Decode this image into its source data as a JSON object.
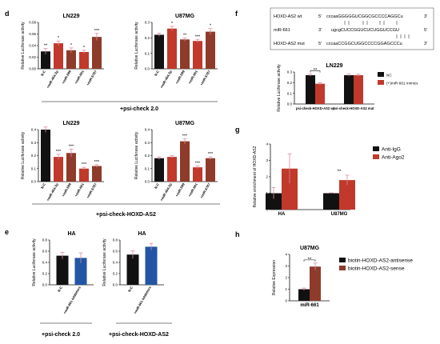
{
  "panels": {
    "d": "d",
    "e": "e",
    "f": "f",
    "g": "g",
    "h": "h"
  },
  "colors": {
    "black": "#111111",
    "red": "#c0392b",
    "brown": "#8e3b2b",
    "blue": "#2255a4",
    "pink": "#f2a2b8",
    "line": "#333333"
  },
  "groups": {
    "d_top": "+psi-check 2.0",
    "d_bottom": "+psi-check-HOXD-AS2",
    "e_left": "+psi-check 2.0",
    "e_right": "+psi-check-HOXD-AS2"
  },
  "sequences": {
    "rows": [
      {
        "name": "HOXD-AS2 wt",
        "p5": "5'",
        "seq": "cccaaGGGGGUCGGCGCCCCAGGCu",
        "p3": "3'"
      },
      {
        "name": "miR-661",
        "p5": "3'",
        "seq": "ugcgCUCCGGUCUCUGGUCCGU",
        "p3": "5'"
      },
      {
        "name": "HOXD-AS2 mut",
        "p5": "5'",
        "seq": "cccaaCCGGCUGGCCCCGGAGCCCu",
        "p3": "3'"
      }
    ]
  },
  "chart_data": [
    {
      "id": "d1",
      "type": "bar",
      "title": "LN229",
      "ylabel": "Relative Luciferase activity",
      "ylim": [
        0,
        0.08
      ],
      "ticks": [
        "0.00",
        "0.02",
        "0.04",
        "0.06",
        "0.08"
      ],
      "categories": [
        "N.C",
        "+miR-454-3p",
        "+miR-599",
        "+miR-661",
        "+miR-5787"
      ],
      "values": [
        0.03,
        0.044,
        0.032,
        0.029,
        0.055
      ],
      "errors": [
        0.005,
        0.004,
        0.004,
        0.003,
        0.006
      ],
      "colors": [
        "#111111",
        "#c0392b",
        "#8e3b2b",
        "#c0392b",
        "#8e3b2b"
      ],
      "sig": [
        "**",
        "*",
        "*",
        "*",
        "***"
      ]
    },
    {
      "id": "d2",
      "type": "bar",
      "title": "U87MG",
      "ylabel": "Relative Luciferase activity",
      "ylim": [
        0,
        0.3
      ],
      "ticks": [
        "0.0",
        "0.1",
        "0.2",
        "0.3"
      ],
      "categories": [
        "N.C",
        "+miR-454-3p",
        "+miR-599",
        "+miR-661",
        "+miR-5787"
      ],
      "values": [
        0.22,
        0.26,
        0.19,
        0.18,
        0.24
      ],
      "errors": [
        0.01,
        0.015,
        0.01,
        0.01,
        0.02
      ],
      "colors": [
        "#111111",
        "#c0392b",
        "#8e3b2b",
        "#c0392b",
        "#8e3b2b"
      ],
      "sig": [
        "",
        "*",
        "**",
        "***",
        "*"
      ]
    },
    {
      "id": "d3",
      "type": "bar",
      "title": "LN229",
      "ylabel": "Relative Luciferase activity",
      "ylim": [
        0,
        0.4
      ],
      "ticks": [
        "0.0",
        "0.1",
        "0.2",
        "0.3",
        "0.4"
      ],
      "categories": [
        "N.C",
        "+miR-454-3p",
        "+miR-599",
        "+miR-661",
        "+miR-5787"
      ],
      "values": [
        0.4,
        0.19,
        0.22,
        0.1,
        0.12
      ],
      "errors": [
        0.02,
        0.02,
        0.03,
        0.01,
        0.01
      ],
      "colors": [
        "#111111",
        "#c0392b",
        "#8e3b2b",
        "#c0392b",
        "#8e3b2b"
      ],
      "sig": [
        "",
        "***",
        "***",
        "***",
        "***"
      ]
    },
    {
      "id": "d4",
      "type": "bar",
      "title": "U87MG",
      "ylabel": "Relative Luciferase activity",
      "ylim": [
        0,
        0.4
      ],
      "ticks": [
        "0.0",
        "0.1",
        "0.2",
        "0.3",
        "0.4"
      ],
      "categories": [
        "N.C",
        "+miR-454-3p",
        "+miR-599",
        "+miR-661",
        "+miR-5787"
      ],
      "values": [
        0.18,
        0.19,
        0.31,
        0.11,
        0.18
      ],
      "errors": [
        0.01,
        0.01,
        0.02,
        0.01,
        0.01
      ],
      "colors": [
        "#111111",
        "#c0392b",
        "#8e3b2b",
        "#c0392b",
        "#8e3b2b"
      ],
      "sig": [
        "",
        "",
        "***",
        "***",
        "***"
      ]
    },
    {
      "id": "e1",
      "type": "bar",
      "title": "HA",
      "ylabel": "Relative Luciferase activity",
      "ylim": [
        0,
        0.8
      ],
      "ticks": [
        "0.0",
        "0.2",
        "0.4",
        "0.6",
        "0.8"
      ],
      "categories": [
        "N.C",
        "+miR-661 inhibitors"
      ],
      "values": [
        0.52,
        0.48
      ],
      "errors": [
        0.06,
        0.09
      ],
      "colors": [
        "#111111",
        "#2255a4"
      ],
      "sig": [
        "",
        ""
      ]
    },
    {
      "id": "e2",
      "type": "bar",
      "title": "HA",
      "ylabel": "Relative Luciferase activity",
      "ylim": [
        0,
        0.8
      ],
      "ticks": [
        "0.0",
        "0.2",
        "0.4",
        "0.6",
        "0.8"
      ],
      "categories": [
        "N.C",
        "+miR-661 inhibitors"
      ],
      "values": [
        0.54,
        0.68
      ],
      "errors": [
        0.07,
        0.06
      ],
      "colors": [
        "#111111",
        "#2255a4"
      ],
      "sig": [
        "",
        ""
      ]
    },
    {
      "id": "f",
      "type": "bar",
      "title": "LN229",
      "ylabel": "Relative Luciferase activity",
      "ylim": [
        0,
        0.3
      ],
      "ticks": [
        "0.0",
        "0.1",
        "0.2",
        "0.3"
      ],
      "categories": [
        "psi-check-HOXD-AS2 wt",
        "psi-check-HOXD-AS2 mut"
      ],
      "series": [
        {
          "name": "NC",
          "values": [
            0.27,
            0.27
          ],
          "errors": [
            0.01,
            0.01
          ],
          "color": "#111111"
        },
        {
          "name": "(+)miR-661 mimics",
          "values": [
            0.19,
            0.27
          ],
          "errors": [
            0.01,
            0.01
          ],
          "color": "#c0392b"
        }
      ],
      "sig": [
        "**",
        ""
      ]
    },
    {
      "id": "g",
      "type": "bar",
      "title": "",
      "ylabel": "Relative enrichment of HOXD-AS2",
      "ylim": [
        0,
        4
      ],
      "ticks": [
        "0",
        "1",
        "2",
        "3",
        "4"
      ],
      "categories": [
        "HA",
        "U87MG"
      ],
      "series": [
        {
          "name": "Anti-IgG",
          "values": [
            1.0,
            1.0
          ],
          "errors": [
            0.35,
            0.02
          ],
          "color": "#111111"
        },
        {
          "name": "Anti-Ago2",
          "values": [
            2.5,
            1.8
          ],
          "errors": [
            0.9,
            0.3
          ],
          "color": "#c0392b"
        }
      ],
      "sig": [
        "",
        "**"
      ]
    },
    {
      "id": "h",
      "type": "bar",
      "title": "U87MG",
      "ylabel": "Relative Expression",
      "ylim": [
        0,
        4
      ],
      "ticks": [
        "0",
        "1",
        "2",
        "3",
        "4"
      ],
      "categories": [
        "miR-661"
      ],
      "series": [
        {
          "name": "biotin-HOXD-AS2-antisense",
          "values": [
            1.0
          ],
          "errors": [
            0.1
          ],
          "color": "#111111"
        },
        {
          "name": "biotin-HOXD-AS2-sense",
          "values": [
            2.95
          ],
          "errors": [
            0.3
          ],
          "color": "#8e3b2b"
        }
      ],
      "sig": [
        "**"
      ]
    }
  ]
}
